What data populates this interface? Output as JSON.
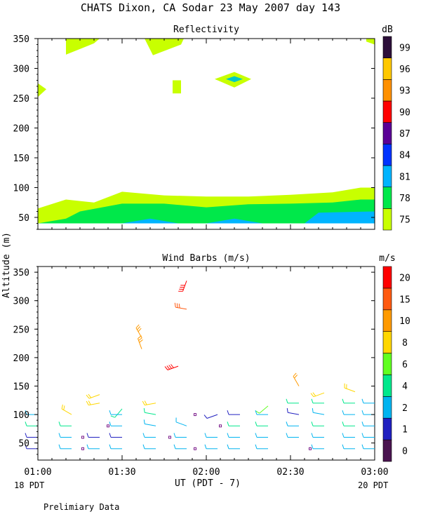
{
  "title": "CHATS Dixon, CA  Sodar  23 May 2007  day 143",
  "ylabel": "Altitude (m)",
  "xlabel": "UT  (PDT - 7)",
  "x_left_note": "18 PDT",
  "x_right_note": "20 PDT",
  "footer": "Prelimiary Data",
  "x_ticks": [
    "01:00",
    "01:30",
    "02:00",
    "02:30",
    "03:00"
  ],
  "y_ticks": [
    "50",
    "100",
    "150",
    "200",
    "250",
    "300",
    "350"
  ],
  "colors": {
    "refl": [
      "#c8ff00",
      "#00e84a",
      "#00b4ff",
      "#0033ff",
      "#5a0096",
      "#ff0000",
      "#ff9000",
      "#ffc800",
      "#2d0f3a"
    ],
    "wind": [
      "#4a1450",
      "#2020c0",
      "#00b4f0",
      "#00e88c",
      "#60ff20",
      "#ffd700",
      "#ff9a00",
      "#ff5a10",
      "#ff0000"
    ]
  },
  "chart_data": [
    {
      "type": "heatmap",
      "title": "Reflectivity",
      "unit": "dB",
      "ylim": [
        30,
        350
      ],
      "xlim": [
        "01:00",
        "03:00"
      ],
      "colorbar_ticks": [
        "75",
        "78",
        "81",
        "84",
        "87",
        "90",
        "93",
        "96",
        "99"
      ],
      "boundaries": {
        "top_75": [
          {
            "t": "01:00",
            "alt": 65
          },
          {
            "t": "01:10",
            "alt": 80
          },
          {
            "t": "01:20",
            "alt": 75
          },
          {
            "t": "01:30",
            "alt": 93
          },
          {
            "t": "01:45",
            "alt": 87
          },
          {
            "t": "02:00",
            "alt": 85
          },
          {
            "t": "02:15",
            "alt": 85
          },
          {
            "t": "02:30",
            "alt": 88
          },
          {
            "t": "02:45",
            "alt": 92
          },
          {
            "t": "02:55",
            "alt": 100
          },
          {
            "t": "03:00",
            "alt": 100
          }
        ],
        "top_78": [
          {
            "t": "01:00",
            "alt": 40
          },
          {
            "t": "01:10",
            "alt": 48
          },
          {
            "t": "01:15",
            "alt": 60
          },
          {
            "t": "01:30",
            "alt": 73
          },
          {
            "t": "01:45",
            "alt": 73
          },
          {
            "t": "02:00",
            "alt": 67
          },
          {
            "t": "02:15",
            "alt": 72
          },
          {
            "t": "02:30",
            "alt": 73
          },
          {
            "t": "02:45",
            "alt": 75
          },
          {
            "t": "02:55",
            "alt": 80
          },
          {
            "t": "03:00",
            "alt": 80
          }
        ],
        "blue_patches": [
          [
            {
              "t": "01:30",
              "alt": 40
            },
            {
              "t": "01:40",
              "alt": 48
            },
            {
              "t": "01:50",
              "alt": 40
            }
          ],
          [
            {
              "t": "02:00",
              "alt": 40
            },
            {
              "t": "02:10",
              "alt": 48
            },
            {
              "t": "02:20",
              "alt": 40
            }
          ],
          [
            {
              "t": "02:35",
              "alt": 40
            },
            {
              "t": "02:40",
              "alt": 58
            },
            {
              "t": "03:00",
              "alt": 60
            },
            {
              "t": "03:00",
              "alt": 40
            }
          ]
        ],
        "high_patches": [
          [
            {
              "t": "01:10",
              "alt": 350
            },
            {
              "t": "01:22",
              "alt": 350
            },
            {
              "t": "01:20",
              "alt": 342
            },
            {
              "t": "01:10",
              "alt": 323
            }
          ],
          [
            {
              "t": "01:38",
              "alt": 350
            },
            {
              "t": "01:52",
              "alt": 350
            },
            {
              "t": "01:51",
              "alt": 340
            },
            {
              "t": "01:41",
              "alt": 322
            }
          ],
          [
            {
              "t": "02:57",
              "alt": 350
            },
            {
              "t": "03:00",
              "alt": 350
            },
            {
              "t": "03:00",
              "alt": 340
            },
            {
              "t": "02:57",
              "alt": 345
            }
          ],
          [
            {
              "t": "01:00",
              "alt": 275
            },
            {
              "t": "01:03",
              "alt": 265
            },
            {
              "t": "01:00",
              "alt": 252
            }
          ],
          [
            {
              "t": "01:48",
              "alt": 280
            },
            {
              "t": "01:51",
              "alt": 280
            },
            {
              "t": "01:51",
              "alt": 258
            },
            {
              "t": "01:48",
              "alt": 258
            }
          ],
          [
            {
              "t": "02:03",
              "alt": 282
            },
            {
              "t": "02:10",
              "alt": 294
            },
            {
              "t": "02:16",
              "alt": 282
            },
            {
              "t": "02:10",
              "alt": 268
            }
          ]
        ],
        "cyan_patch": [
          {
            "t": "02:07",
            "alt": 282
          },
          {
            "t": "02:10",
            "alt": 287
          },
          {
            "t": "02:13",
            "alt": 282
          },
          {
            "t": "02:10",
            "alt": 277
          }
        ]
      }
    },
    {
      "type": "scatter",
      "title": "Wind Barbs (m/s)",
      "unit": "m/s",
      "ylim": [
        20,
        360
      ],
      "xlim": [
        "01:00",
        "03:00"
      ],
      "colorbar_ticks": [
        "0",
        "1",
        "2",
        "4",
        "6",
        "8",
        "10",
        "15",
        "20"
      ],
      "barbs": [
        {
          "t": "01:00",
          "alt": 100,
          "speed": 3,
          "dir": 270
        },
        {
          "t": "01:00",
          "alt": 80,
          "speed": 4,
          "dir": 270
        },
        {
          "t": "01:00",
          "alt": 60,
          "speed": 1,
          "dir": 270
        },
        {
          "t": "01:00",
          "alt": 40,
          "speed": 1,
          "dir": 270
        },
        {
          "t": "01:12",
          "alt": 100,
          "speed": 9,
          "dir": 300
        },
        {
          "t": "01:12",
          "alt": 80,
          "speed": 4,
          "dir": 270
        },
        {
          "t": "01:12",
          "alt": 60,
          "speed": 3,
          "dir": 270
        },
        {
          "t": "01:12",
          "alt": 40,
          "speed": 3,
          "dir": 270
        },
        {
          "t": "01:22",
          "alt": 135,
          "speed": 9,
          "dir": 250
        },
        {
          "t": "01:22",
          "alt": 120,
          "speed": 9,
          "dir": 260
        },
        {
          "t": "01:22",
          "alt": 60,
          "speed": 1,
          "dir": 270
        },
        {
          "t": "01:22",
          "alt": 40,
          "speed": 3,
          "dir": 270
        },
        {
          "t": "01:30",
          "alt": 110,
          "speed": 5,
          "dir": 220
        },
        {
          "t": "01:30",
          "alt": 100,
          "speed": 3,
          "dir": 270
        },
        {
          "t": "01:30",
          "alt": 80,
          "speed": 3,
          "dir": 270
        },
        {
          "t": "01:30",
          "alt": 60,
          "speed": 1,
          "dir": 270
        },
        {
          "t": "01:30",
          "alt": 40,
          "speed": 3,
          "dir": 270
        },
        {
          "t": "01:37",
          "alt": 235,
          "speed": 13,
          "dir": 330
        },
        {
          "t": "01:37",
          "alt": 215,
          "speed": 13,
          "dir": 340
        },
        {
          "t": "01:42",
          "alt": 120,
          "speed": 9,
          "dir": 260
        },
        {
          "t": "01:42",
          "alt": 100,
          "speed": 4,
          "dir": 280
        },
        {
          "t": "01:42",
          "alt": 80,
          "speed": 3,
          "dir": 280
        },
        {
          "t": "01:42",
          "alt": 60,
          "speed": 3,
          "dir": 270
        },
        {
          "t": "01:42",
          "alt": 40,
          "speed": 3,
          "dir": 270
        },
        {
          "t": "01:50",
          "alt": 185,
          "speed": 20,
          "dir": 250
        },
        {
          "t": "01:53",
          "alt": 335,
          "speed": 20,
          "dir": 200
        },
        {
          "t": "01:53",
          "alt": 285,
          "speed": 15,
          "dir": 280
        },
        {
          "t": "01:53",
          "alt": 80,
          "speed": 3,
          "dir": 290
        },
        {
          "t": "01:53",
          "alt": 60,
          "speed": 3,
          "dir": 270
        },
        {
          "t": "01:53",
          "alt": 40,
          "speed": 3,
          "dir": 270
        },
        {
          "t": "02:04",
          "alt": 100,
          "speed": 1,
          "dir": 250
        },
        {
          "t": "02:04",
          "alt": 60,
          "speed": 3,
          "dir": 270
        },
        {
          "t": "02:04",
          "alt": 40,
          "speed": 3,
          "dir": 270
        },
        {
          "t": "02:12",
          "alt": 100,
          "speed": 1,
          "dir": 270
        },
        {
          "t": "02:12",
          "alt": 80,
          "speed": 4,
          "dir": 270
        },
        {
          "t": "02:12",
          "alt": 60,
          "speed": 3,
          "dir": 270
        },
        {
          "t": "02:12",
          "alt": 40,
          "speed": 3,
          "dir": 270
        },
        {
          "t": "02:22",
          "alt": 115,
          "speed": 6,
          "dir": 230
        },
        {
          "t": "02:22",
          "alt": 100,
          "speed": 3,
          "dir": 270
        },
        {
          "t": "02:22",
          "alt": 80,
          "speed": 4,
          "dir": 270
        },
        {
          "t": "02:22",
          "alt": 60,
          "speed": 3,
          "dir": 270
        },
        {
          "t": "02:22",
          "alt": 40,
          "speed": 3,
          "dir": 270
        },
        {
          "t": "02:33",
          "alt": 150,
          "speed": 10,
          "dir": 330
        },
        {
          "t": "02:33",
          "alt": 120,
          "speed": 4,
          "dir": 270
        },
        {
          "t": "02:33",
          "alt": 100,
          "speed": 1,
          "dir": 280
        },
        {
          "t": "02:33",
          "alt": 80,
          "speed": 3,
          "dir": 270
        },
        {
          "t": "02:33",
          "alt": 60,
          "speed": 3,
          "dir": 270
        },
        {
          "t": "02:42",
          "alt": 138,
          "speed": 9,
          "dir": 250
        },
        {
          "t": "02:42",
          "alt": 120,
          "speed": 4,
          "dir": 270
        },
        {
          "t": "02:42",
          "alt": 100,
          "speed": 3,
          "dir": 280
        },
        {
          "t": "02:42",
          "alt": 80,
          "speed": 4,
          "dir": 270
        },
        {
          "t": "02:42",
          "alt": 60,
          "speed": 3,
          "dir": 270
        },
        {
          "t": "02:42",
          "alt": 40,
          "speed": 3,
          "dir": 270
        },
        {
          "t": "02:53",
          "alt": 140,
          "speed": 9,
          "dir": 290
        },
        {
          "t": "02:53",
          "alt": 120,
          "speed": 4,
          "dir": 270
        },
        {
          "t": "02:53",
          "alt": 100,
          "speed": 3,
          "dir": 270
        },
        {
          "t": "02:53",
          "alt": 80,
          "speed": 4,
          "dir": 270
        },
        {
          "t": "02:53",
          "alt": 60,
          "speed": 3,
          "dir": 270
        },
        {
          "t": "02:53",
          "alt": 40,
          "speed": 3,
          "dir": 270
        },
        {
          "t": "03:00",
          "alt": 120,
          "speed": 3,
          "dir": 270
        },
        {
          "t": "03:00",
          "alt": 100,
          "speed": 3,
          "dir": 270
        },
        {
          "t": "03:00",
          "alt": 80,
          "speed": 3,
          "dir": 270
        },
        {
          "t": "03:00",
          "alt": 60,
          "speed": 3,
          "dir": 270
        },
        {
          "t": "03:00",
          "alt": 40,
          "speed": 3,
          "dir": 270
        }
      ],
      "calm": [
        {
          "t": "01:16",
          "alt": 60
        },
        {
          "t": "01:16",
          "alt": 40
        },
        {
          "t": "01:25",
          "alt": 80
        },
        {
          "t": "01:47",
          "alt": 60
        },
        {
          "t": "01:56",
          "alt": 100
        },
        {
          "t": "01:56",
          "alt": 40
        },
        {
          "t": "02:05",
          "alt": 80
        },
        {
          "t": "02:37",
          "alt": 40
        }
      ]
    }
  ]
}
